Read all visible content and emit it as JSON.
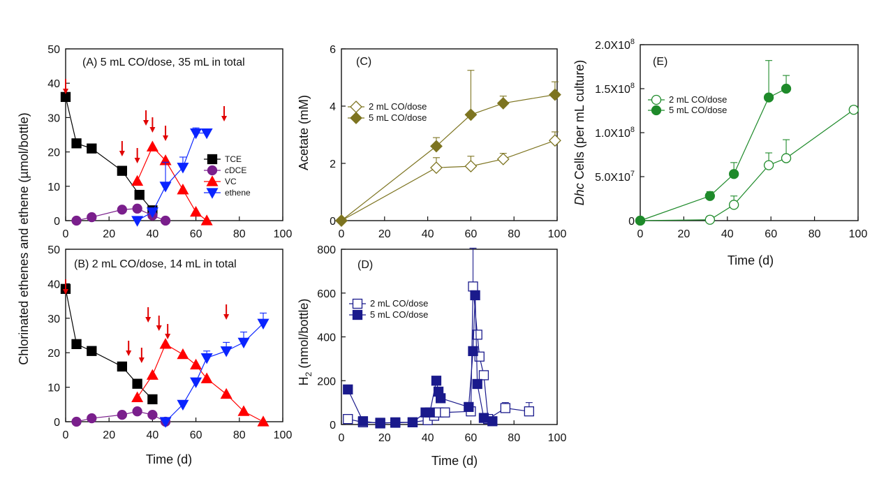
{
  "chart_data": [
    {
      "panel": "A",
      "type": "line",
      "annotation": "(A) 5 mL CO/dose, 35 mL in total",
      "xlim": [
        0,
        100
      ],
      "ylim": [
        0,
        50
      ],
      "xticks": [
        "0",
        "20",
        "40",
        "60",
        "80",
        "100"
      ],
      "yticks": [
        "0",
        "10",
        "20",
        "30",
        "40",
        "50"
      ],
      "shared_ylabel": "Chlorinated ethenes and ethene (µmol/bottle)",
      "legend": {
        "position": "center-right",
        "entries": [
          "TCE",
          "cDCE",
          "VC",
          "ethene"
        ]
      },
      "series": [
        {
          "name": "TCE",
          "color": "#000000",
          "marker": "square",
          "filled": true,
          "points": [
            [
              0,
              36
            ],
            [
              5,
              22.5
            ],
            [
              12,
              21
            ],
            [
              26,
              14.5
            ],
            [
              34,
              7.5
            ],
            [
              40,
              3
            ]
          ]
        },
        {
          "name": "cDCE",
          "color": "#7a1f8c",
          "marker": "circle",
          "filled": true,
          "points": [
            [
              5,
              0
            ],
            [
              12,
              1
            ],
            [
              26,
              3.2
            ],
            [
              33,
              3.5
            ],
            [
              40,
              1.5
            ],
            [
              46,
              0
            ]
          ]
        },
        {
          "name": "VC",
          "color": "#ff0000",
          "marker": "triangle-up",
          "filled": true,
          "points": [
            [
              33,
              11.5
            ],
            [
              40,
              21.5
            ],
            [
              46,
              17.5
            ],
            [
              54,
              9
            ],
            [
              60,
              2.5
            ],
            [
              65,
              0
            ]
          ]
        },
        {
          "name": "ethene",
          "color": "#0a24ff",
          "marker": "triangle-down",
          "filled": true,
          "points": [
            [
              33,
              0
            ],
            [
              40,
              2.5
            ],
            [
              46,
              10
            ],
            [
              54,
              15.5
            ],
            [
              60,
              25.5
            ],
            [
              65,
              25.5
            ]
          ],
          "errors": [
            [
              0,
              0
            ],
            [
              0,
              0
            ],
            [
              0,
              7
            ],
            [
              0,
              3
            ],
            [
              0,
              1.5
            ],
            [
              0,
              0
            ]
          ]
        }
      ],
      "arrows_x": [
        0,
        26,
        33,
        37,
        40,
        46,
        73
      ]
    },
    {
      "panel": "B",
      "type": "line",
      "annotation": "(B) 2 mL CO/dose, 14 mL in total",
      "xlim": [
        0,
        100
      ],
      "ylim": [
        0,
        50
      ],
      "xticks": [
        "0",
        "20",
        "40",
        "60",
        "80",
        "100"
      ],
      "yticks": [
        "0",
        "10",
        "20",
        "30",
        "40",
        "50"
      ],
      "xlabel": "Time (d)",
      "series": [
        {
          "name": "TCE",
          "color": "#000000",
          "marker": "square",
          "filled": true,
          "points": [
            [
              0,
              38.5
            ],
            [
              5,
              22.5
            ],
            [
              12,
              20.5
            ],
            [
              26,
              16
            ],
            [
              33,
              11
            ],
            [
              40,
              6.5
            ]
          ]
        },
        {
          "name": "cDCE",
          "color": "#7a1f8c",
          "marker": "circle",
          "filled": true,
          "points": [
            [
              5,
              0
            ],
            [
              12,
              1
            ],
            [
              26,
              2
            ],
            [
              33,
              3
            ],
            [
              40,
              2
            ],
            [
              46,
              0
            ]
          ]
        },
        {
          "name": "VC",
          "color": "#ff0000",
          "marker": "triangle-up",
          "filled": true,
          "points": [
            [
              33,
              7
            ],
            [
              40,
              13.5
            ],
            [
              46,
              22.5
            ],
            [
              54,
              19.5
            ],
            [
              60,
              16.5
            ],
            [
              65,
              12.5
            ],
            [
              74,
              8
            ],
            [
              82,
              3
            ],
            [
              91,
              0
            ]
          ]
        },
        {
          "name": "ethene",
          "color": "#0a24ff",
          "marker": "triangle-down",
          "filled": true,
          "points": [
            [
              46,
              0
            ],
            [
              54,
              5
            ],
            [
              60,
              11.5
            ],
            [
              65,
              18.5
            ],
            [
              74,
              20.5
            ],
            [
              82,
              23
            ],
            [
              91,
              28.5
            ]
          ],
          "errors": [
            [
              0,
              0
            ],
            [
              0,
              0
            ],
            [
              0,
              1
            ],
            [
              0,
              2
            ],
            [
              0,
              2.5
            ],
            [
              0,
              3
            ],
            [
              0,
              3
            ]
          ]
        }
      ],
      "arrows_x": [
        0,
        29,
        35,
        38,
        43,
        47,
        74
      ]
    },
    {
      "panel": "C",
      "type": "line",
      "annotation": "(C)",
      "xlim": [
        0,
        100
      ],
      "ylim": [
        0,
        6
      ],
      "xticks": [
        "0",
        "20",
        "40",
        "60",
        "80",
        "100"
      ],
      "yticks": [
        "0",
        "2",
        "4",
        "6"
      ],
      "ylabel": "Acetate (mM)",
      "legend": {
        "position": "upper-left",
        "entries": [
          "2 mL CO/dose",
          "5 mL CO/dose"
        ]
      },
      "series": [
        {
          "name": "2 mL CO/dose",
          "color": "#7d7420",
          "marker": "diamond",
          "filled": false,
          "points": [
            [
              0,
              0
            ],
            [
              44,
              1.85
            ],
            [
              60,
              1.9
            ],
            [
              75,
              2.15
            ],
            [
              99,
              2.8
            ]
          ],
          "errors": [
            [
              0,
              0
            ],
            [
              0,
              0.35
            ],
            [
              0,
              0.35
            ],
            [
              0,
              0.2
            ],
            [
              0,
              0.3
            ]
          ]
        },
        {
          "name": "5 mL CO/dose",
          "color": "#7d7420",
          "marker": "diamond",
          "filled": true,
          "points": [
            [
              0,
              0
            ],
            [
              44,
              2.6
            ],
            [
              60,
              3.7
            ],
            [
              75,
              4.1
            ],
            [
              99,
              4.4
            ]
          ],
          "errors": [
            [
              0,
              0
            ],
            [
              0,
              0.3
            ],
            [
              0,
              1.55
            ],
            [
              0,
              0.25
            ],
            [
              0,
              0.45
            ]
          ]
        }
      ]
    },
    {
      "panel": "D",
      "type": "line",
      "annotation": "(D)",
      "xlim": [
        0,
        100
      ],
      "ylim": [
        0,
        800
      ],
      "xticks": [
        "0",
        "20",
        "40",
        "60",
        "80",
        "100"
      ],
      "yticks": [
        "0",
        "200",
        "400",
        "600",
        "800"
      ],
      "ylabel": "H2 (nmol/bottle)",
      "xlabel": "Time (d)",
      "legend": {
        "position": "upper-left",
        "entries": [
          "2 mL CO/dose",
          "5 mL CO/dose"
        ]
      },
      "series": [
        {
          "name": "2 mL CO/dose",
          "color": "#1a1a8c",
          "marker": "square",
          "filled": false,
          "points": [
            [
              3,
              25
            ],
            [
              10,
              10
            ],
            [
              18,
              8
            ],
            [
              25,
              8
            ],
            [
              33,
              10
            ],
            [
              40,
              20
            ],
            [
              43,
              40
            ],
            [
              45,
              55
            ],
            [
              48,
              55
            ],
            [
              60,
              60
            ],
            [
              61,
              630
            ],
            [
              63,
              410
            ],
            [
              64,
              310
            ],
            [
              66,
              225
            ],
            [
              68,
              25
            ],
            [
              76,
              75
            ],
            [
              87,
              60
            ]
          ],
          "errors": [
            [
              0,
              20
            ],
            [
              0,
              0
            ],
            [
              0,
              0
            ],
            [
              0,
              0
            ],
            [
              0,
              0
            ],
            [
              0,
              0
            ],
            [
              0,
              0
            ],
            [
              0,
              0
            ],
            [
              0,
              0
            ],
            [
              0,
              0
            ],
            [
              0,
              175
            ],
            [
              0,
              0
            ],
            [
              0,
              0
            ],
            [
              0,
              0
            ],
            [
              0,
              0
            ],
            [
              0,
              25
            ],
            [
              0,
              40
            ]
          ]
        },
        {
          "name": "5 mL CO/dose",
          "color": "#1a1a8c",
          "marker": "square",
          "filled": true,
          "points": [
            [
              3,
              160
            ],
            [
              10,
              15
            ],
            [
              18,
              5
            ],
            [
              25,
              10
            ],
            [
              33,
              10
            ],
            [
              39,
              55
            ],
            [
              41,
              55
            ],
            [
              44,
              200
            ],
            [
              45,
              150
            ],
            [
              46,
              120
            ],
            [
              59,
              80
            ],
            [
              61,
              335
            ],
            [
              62,
              590
            ],
            [
              63,
              185
            ],
            [
              66,
              30
            ],
            [
              70,
              15
            ]
          ]
        }
      ]
    },
    {
      "panel": "E",
      "type": "line",
      "annotation": "(E)",
      "xlim": [
        0,
        100
      ],
      "ylim": [
        0,
        200000000
      ],
      "xticks": [
        "0",
        "20",
        "40",
        "60",
        "80",
        "100"
      ],
      "yticks": [
        "0",
        "5.0X10^7",
        "1.0X10^8",
        "1.5X10^8",
        "2.0X10^8"
      ],
      "ylabel": "Dhc Cells (per mL culture)",
      "xlabel": "Time (d)",
      "legend": {
        "position": "upper-left",
        "entries": [
          "2 mL CO/dose",
          "5 mL CO/dose"
        ]
      },
      "series": [
        {
          "name": "2 mL CO/dose",
          "color": "#1e8a2a",
          "marker": "circle",
          "filled": false,
          "points": [
            [
              0,
              0
            ],
            [
              32,
              1000000
            ],
            [
              43,
              18000000
            ],
            [
              59,
              63000000
            ],
            [
              67,
              71000000
            ],
            [
              98,
              126000000
            ]
          ],
          "errors": [
            [
              0,
              0
            ],
            [
              0,
              4000000
            ],
            [
              0,
              10000000
            ],
            [
              0,
              14000000
            ],
            [
              0,
              21000000
            ],
            [
              0,
              4000000
            ]
          ]
        },
        {
          "name": "5 mL CO/dose",
          "color": "#1e8a2a",
          "marker": "circle",
          "filled": true,
          "points": [
            [
              0,
              0
            ],
            [
              32,
              28000000
            ],
            [
              43,
              53000000
            ],
            [
              59,
              140000000
            ],
            [
              67,
              150000000
            ]
          ],
          "errors": [
            [
              0,
              0
            ],
            [
              0,
              5000000
            ],
            [
              0,
              13000000
            ],
            [
              0,
              42000000
            ],
            [
              0,
              15000000
            ]
          ]
        }
      ]
    }
  ]
}
